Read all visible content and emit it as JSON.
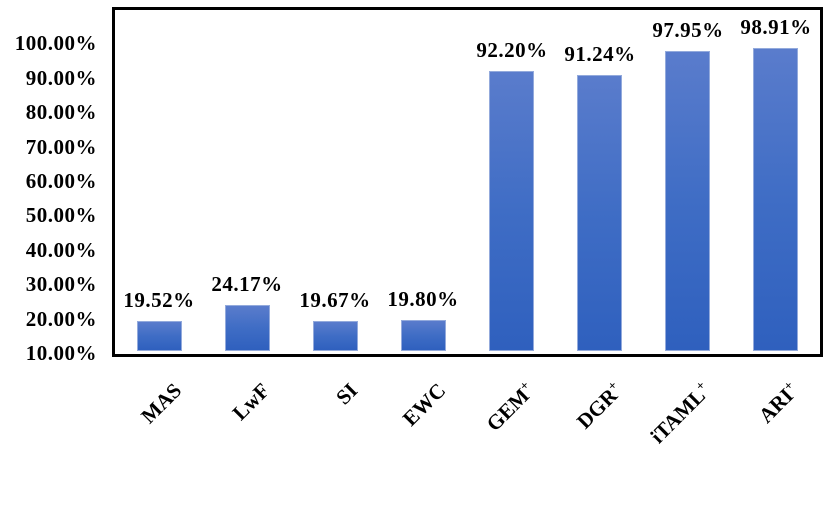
{
  "chart_data": {
    "type": "bar",
    "title": "",
    "xlabel": "",
    "ylabel": "",
    "grid": false,
    "legend": null,
    "categories": [
      {
        "text": "MAS",
        "sup": ""
      },
      {
        "text": "LwF",
        "sup": ""
      },
      {
        "text": "SI",
        "sup": ""
      },
      {
        "text": "EWC",
        "sup": ""
      },
      {
        "text": "GEM",
        "sup": "+"
      },
      {
        "text": "DGR",
        "sup": "+"
      },
      {
        "text": "iTAML",
        "sup": "+"
      },
      {
        "text": "ARI",
        "sup": "+"
      }
    ],
    "values": [
      19.52,
      24.17,
      19.67,
      19.8,
      92.2,
      91.24,
      97.95,
      98.91
    ],
    "value_labels": [
      "19.52%",
      "24.17%",
      "19.67%",
      "19.80%",
      "92.20%",
      "91.24%",
      "97.95%",
      "98.91%"
    ],
    "y_axis": {
      "min": 10,
      "max": 110,
      "tick_values": [
        100,
        90,
        80,
        70,
        60,
        50,
        40,
        30,
        20,
        10
      ],
      "tick_labels": [
        "100.00%",
        "90.00%",
        "80.00%",
        "70.00%",
        "60.00%",
        "50.00%",
        "40.00%",
        "30.00%",
        "20.00%",
        "10.00%"
      ]
    },
    "colors": {
      "bar_top": "#5a7ccc",
      "bar_mid": "#3f6dc5",
      "bar_bottom": "#2f60be",
      "bar_edge": "#93aadc",
      "axis": "#000000",
      "text": "#000000",
      "background": "#ffffff"
    }
  }
}
